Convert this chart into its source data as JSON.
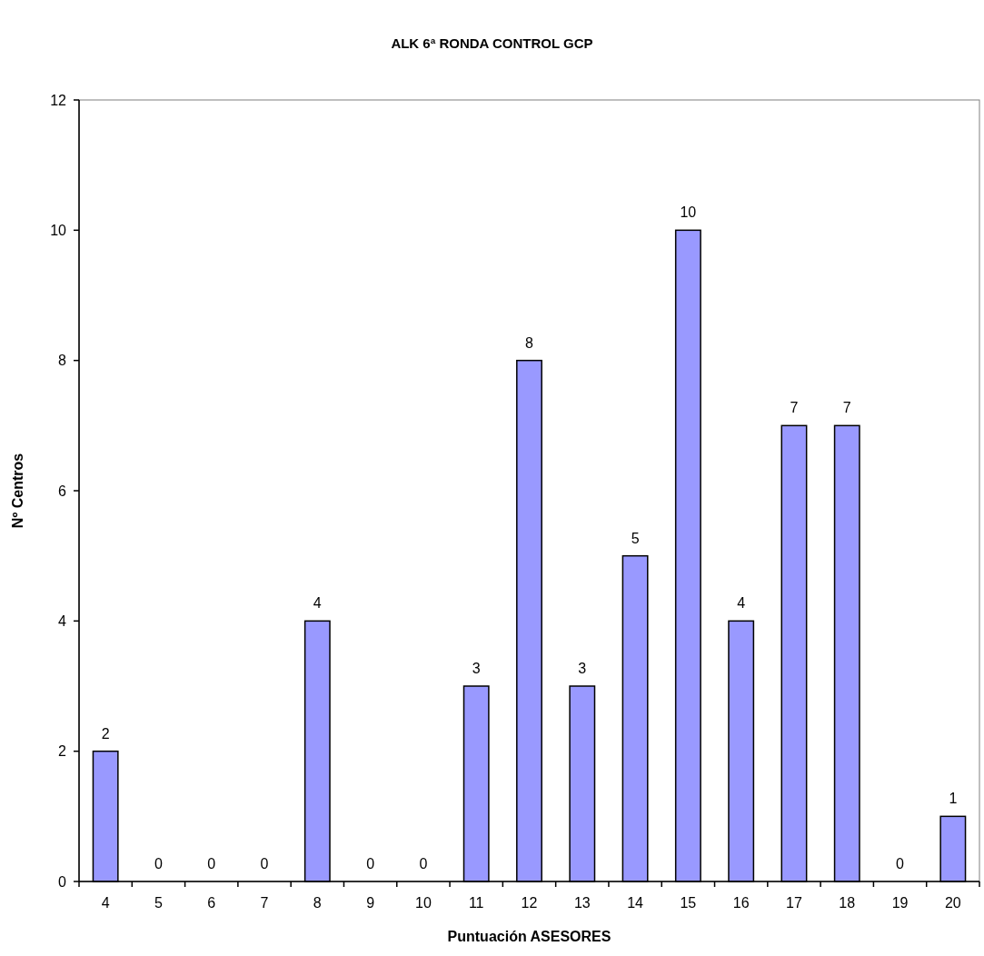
{
  "chart_data": {
    "type": "bar",
    "title": "ALK 6ª RONDA CONTROL GCP",
    "xlabel": "Puntuación ASESORES",
    "ylabel": "Nº Centros",
    "categories": [
      "4",
      "5",
      "6",
      "7",
      "8",
      "9",
      "10",
      "11",
      "12",
      "13",
      "14",
      "15",
      "16",
      "17",
      "18",
      "19",
      "20"
    ],
    "values": [
      2,
      0,
      0,
      0,
      4,
      0,
      0,
      3,
      8,
      3,
      5,
      10,
      4,
      7,
      7,
      0,
      1
    ],
    "color": "#9999ff",
    "ylim": [
      0,
      12
    ],
    "yticks": [
      0,
      2,
      4,
      6,
      8,
      10,
      12
    ],
    "grid": false,
    "data_labels": true
  }
}
